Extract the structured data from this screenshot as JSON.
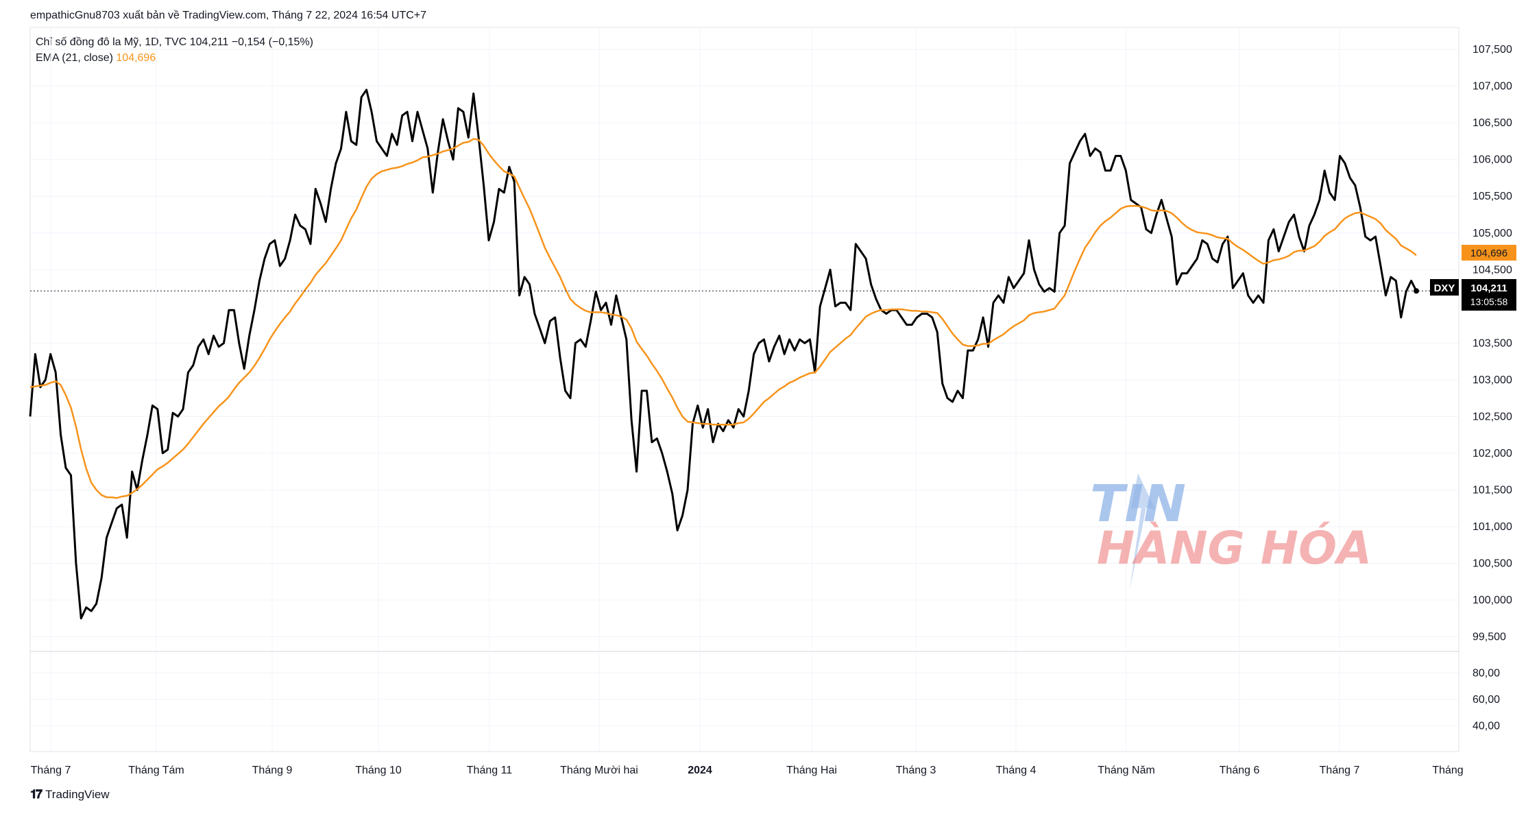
{
  "header": {
    "publisher": "empathicGnu8703 xuất bản về TradingView.com, Tháng 7 22, 2024 16:54 UTC+7"
  },
  "legend": {
    "title": "Chỉ số đồng đô la Mỹ, 1D, TVC",
    "last": "104,211",
    "change": "−0,154 (−0,15%)",
    "ema_label": "EMA (21, close)",
    "ema_value": "104,696"
  },
  "price_labels": {
    "symbol": "DXY",
    "last_price": "104,211",
    "countdown": "13:05:58",
    "ema_price": "104,696"
  },
  "watermark": {
    "line1": "TIN",
    "line2": "HÀNG HÓA"
  },
  "footer": {
    "brand": "TradingView"
  },
  "colors": {
    "price_line": "#000000",
    "ema_line": "#f7931a",
    "grid": "#f0f3fa",
    "axis_text": "#131722",
    "watermark_blue": "#8fb3e8",
    "watermark_red": "#f08080"
  },
  "chart_data": {
    "type": "line",
    "title": "Chỉ số đồng đô la Mỹ, 1D, TVC",
    "price_axis": {
      "ticks": [
        107500,
        107000,
        106500,
        106000,
        105500,
        105000,
        104500,
        103500,
        103000,
        102500,
        102000,
        101500,
        101000,
        100500,
        100000,
        99500
      ],
      "tick_labels": [
        "107,500",
        "107,000",
        "106,500",
        "106,000",
        "105,500",
        "105,000",
        "104,500",
        "103,500",
        "103,000",
        "102,500",
        "102,000",
        "101,500",
        "101,000",
        "100,500",
        "100,000",
        "99,500"
      ],
      "ylim": [
        99300,
        107800
      ]
    },
    "lower_axis": {
      "ticks": [
        80,
        60,
        40
      ],
      "tick_labels": [
        "80,00",
        "60,00",
        "40,00"
      ]
    },
    "x_axis": {
      "labels": [
        "Tháng 7",
        "Tháng Tám",
        "Tháng 9",
        "Tháng 10",
        "Tháng 11",
        "Tháng Mười hai",
        "2024",
        "Tháng Hai",
        "Tháng 3",
        "Tháng 4",
        "Tháng Năm",
        "Tháng 6",
        "Tháng 7",
        "Tháng"
      ]
    },
    "grid": true,
    "series": [
      {
        "name": "DXY",
        "color": "#000000",
        "values": [
          102500,
          103350,
          102900,
          103000,
          103350,
          103100,
          102250,
          101800,
          101700,
          100500,
          99750,
          99900,
          99850,
          99950,
          100300,
          100850,
          101050,
          101250,
          101300,
          100850,
          101750,
          101500,
          101900,
          102250,
          102650,
          102600,
          102000,
          102050,
          102550,
          102500,
          102600,
          103100,
          103200,
          103450,
          103550,
          103350,
          103600,
          103450,
          103500,
          103950,
          103950,
          103500,
          103150,
          103600,
          103950,
          104350,
          104650,
          104850,
          104900,
          104550,
          104650,
          104900,
          105250,
          105100,
          105050,
          104850,
          105600,
          105400,
          105150,
          105600,
          105950,
          106150,
          106650,
          106250,
          106200,
          106850,
          106950,
          106650,
          106250,
          106150,
          106050,
          106350,
          106200,
          106600,
          106650,
          106250,
          106650,
          106400,
          106150,
          105550,
          106100,
          106550,
          106250,
          106000,
          106700,
          106650,
          106300,
          106900,
          106300,
          105650,
          104900,
          105150,
          105600,
          105550,
          105900,
          105700,
          104150,
          104400,
          104300,
          103900,
          103700,
          103500,
          103800,
          103850,
          103300,
          102850,
          102750,
          103500,
          103550,
          103450,
          103800,
          104200,
          103950,
          104050,
          103750,
          104150,
          103850,
          103550,
          102450,
          101750,
          102850,
          102850,
          102150,
          102200,
          102000,
          101750,
          101450,
          100950,
          101150,
          101500,
          102400,
          102650,
          102350,
          102600,
          102150,
          102400,
          102300,
          102450,
          102350,
          102600,
          102500,
          102850,
          103350,
          103500,
          103550,
          103250,
          103450,
          103600,
          103350,
          103550,
          103400,
          103550,
          103500,
          103550,
          103100,
          104000,
          104250,
          104500,
          104000,
          104050,
          104050,
          103950,
          104850,
          104750,
          104650,
          104300,
          104100,
          103950,
          103900,
          103950,
          103950,
          103850,
          103750,
          103750,
          103850,
          103900,
          103900,
          103850,
          103650,
          102950,
          102750,
          102700,
          102850,
          102750,
          103400,
          103400,
          103550,
          103850,
          103450,
          104050,
          104150,
          104050,
          104400,
          104250,
          104350,
          104450,
          104900,
          104500,
          104300,
          104200,
          104250,
          104200,
          105000,
          105100,
          105950,
          106100,
          106250,
          106350,
          106050,
          106150,
          106100,
          105850,
          105850,
          106050,
          106050,
          105850,
          105450,
          105400,
          105350,
          105050,
          105000,
          105250,
          105450,
          105200,
          104950,
          104300,
          104450,
          104450,
          104550,
          104650,
          104900,
          104850,
          104650,
          104600,
          104850,
          104950,
          104250,
          104350,
          104450,
          104150,
          104050,
          104150,
          104050,
          104900,
          105050,
          104750,
          104950,
          105150,
          105250,
          104950,
          104750,
          105100,
          105250,
          105450,
          105850,
          105550,
          105450,
          106050,
          105950,
          105750,
          105650,
          105350,
          104950,
          104900,
          104950,
          104550,
          104150,
          104400,
          104350,
          103850,
          104200,
          104350,
          104211
        ]
      },
      {
        "name": "EMA (21, close)",
        "color": "#f7931a",
        "values": [
          102900,
          102910,
          102920,
          102930,
          102960,
          102980,
          102930,
          102790,
          102620,
          102360,
          102050,
          101790,
          101600,
          101500,
          101430,
          101400,
          101400,
          101390,
          101410,
          101420,
          101460,
          101510,
          101570,
          101640,
          101710,
          101780,
          101820,
          101870,
          101930,
          101990,
          102050,
          102130,
          102220,
          102310,
          102400,
          102480,
          102560,
          102640,
          102700,
          102770,
          102870,
          102960,
          103030,
          103100,
          103190,
          103300,
          103420,
          103550,
          103660,
          103760,
          103850,
          103930,
          104040,
          104130,
          104230,
          104320,
          104430,
          104510,
          104590,
          104690,
          104790,
          104900,
          105050,
          105200,
          105320,
          105480,
          105630,
          105740,
          105800,
          105840,
          105860,
          105880,
          105890,
          105910,
          105940,
          105960,
          105990,
          106030,
          106040,
          106060,
          106080,
          106110,
          106130,
          106150,
          106190,
          106230,
          106240,
          106280,
          106270,
          106190,
          106080,
          105990,
          105910,
          105840,
          105810,
          105770,
          105620,
          105470,
          105330,
          105160,
          104980,
          104800,
          104660,
          104530,
          104400,
          104240,
          104100,
          104030,
          103980,
          103940,
          103920,
          103920,
          103920,
          103910,
          103890,
          103880,
          103860,
          103820,
          103700,
          103520,
          103420,
          103330,
          103220,
          103120,
          103010,
          102880,
          102760,
          102620,
          102500,
          102430,
          102420,
          102410,
          102400,
          102400,
          102390,
          102390,
          102390,
          102390,
          102390,
          102410,
          102420,
          102470,
          102540,
          102620,
          102700,
          102750,
          102810,
          102870,
          102910,
          102960,
          102990,
          103030,
          103060,
          103090,
          103100,
          103180,
          103280,
          103380,
          103440,
          103500,
          103560,
          103610,
          103700,
          103780,
          103860,
          103900,
          103930,
          103950,
          103950,
          103960,
          103960,
          103960,
          103950,
          103940,
          103940,
          103930,
          103930,
          103920,
          103910,
          103830,
          103730,
          103630,
          103550,
          103480,
          103460,
          103460,
          103470,
          103490,
          103490,
          103540,
          103580,
          103620,
          103680,
          103730,
          103770,
          103810,
          103880,
          103910,
          103920,
          103930,
          103950,
          103970,
          104060,
          104150,
          104320,
          104490,
          104650,
          104800,
          104900,
          105010,
          105100,
          105160,
          105210,
          105270,
          105330,
          105360,
          105370,
          105370,
          105360,
          105340,
          105310,
          105300,
          105310,
          105300,
          105270,
          105210,
          105140,
          105080,
          105040,
          105010,
          105000,
          104990,
          104970,
          104940,
          104930,
          104920,
          104860,
          104810,
          104770,
          104720,
          104670,
          104620,
          104580,
          104600,
          104630,
          104640,
          104660,
          104690,
          104740,
          104760,
          104760,
          104790,
          104820,
          104880,
          104960,
          105010,
          105050,
          105130,
          105200,
          105240,
          105270,
          105280,
          105250,
          105220,
          105190,
          105130,
          105040,
          104980,
          104920,
          104830,
          104790,
          104750,
          104696
        ]
      }
    ]
  }
}
